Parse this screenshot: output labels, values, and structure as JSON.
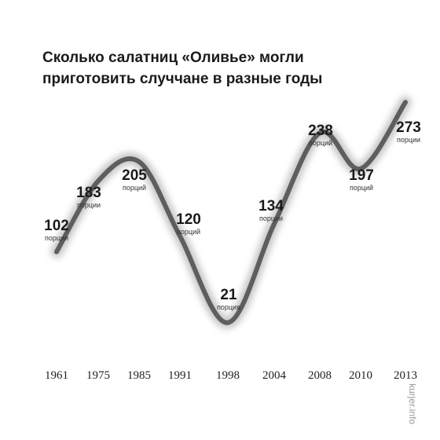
{
  "title": [
    "Сколько салатниц «Оливье» могли",
    "приготовить случчане в разные годы"
  ],
  "watermark": "kurjer.info",
  "colors": {
    "line": "#5e5e5e",
    "shadow": "#c9c9c9",
    "text": "#1a1a1a"
  },
  "chart_data": {
    "type": "line",
    "title": "Сколько салатниц «Оливье» могли приготовить случчане в разные годы",
    "categories": [
      "1961",
      "1975",
      "1985",
      "1991",
      "1998",
      "2004",
      "2008",
      "2010",
      "2013"
    ],
    "series": [
      {
        "values": [
          102,
          183,
          205,
          120,
          21,
          134,
          238,
          197,
          273
        ],
        "labels": [
          "102",
          "183",
          "205",
          "120",
          "21",
          "134",
          "238",
          "197",
          "273"
        ],
        "units": [
          "порции",
          "порции",
          "порций",
          "порций",
          "порция",
          "порции",
          "порций",
          "порций",
          "порции"
        ]
      }
    ],
    "xlabel": "",
    "ylabel": "",
    "grid": false,
    "legend": "none"
  }
}
